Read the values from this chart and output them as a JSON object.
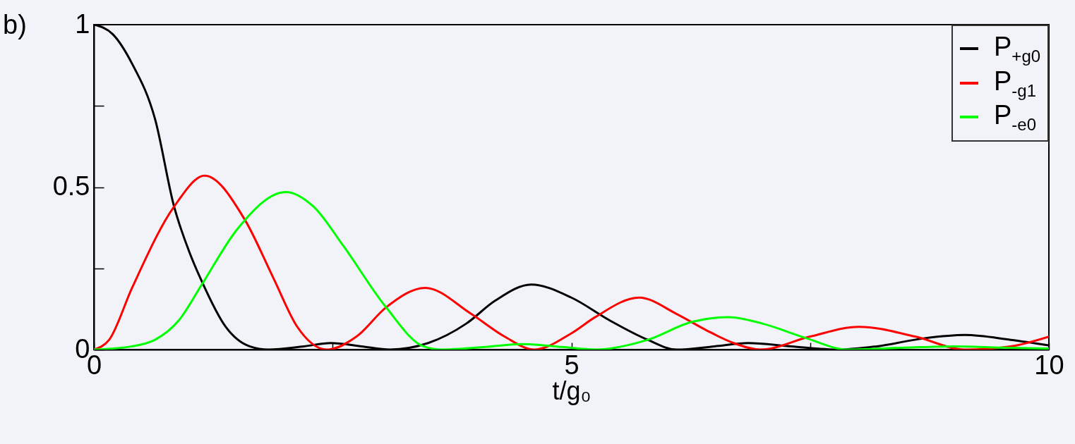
{
  "chart_data": {
    "type": "line",
    "title": "b)",
    "xlabel": "t/g₀",
    "xlim": [
      0,
      10
    ],
    "ylim": [
      0,
      1
    ],
    "xticks": [
      0,
      {
        "value": 2.5,
        "label": null
      },
      5,
      {
        "value": 7.5,
        "label": null
      },
      10
    ],
    "yticks": [
      0,
      {
        "value": 0.25,
        "label": null
      },
      0.5,
      {
        "value": 0.75,
        "label": null
      },
      1
    ],
    "grid": false,
    "legend": "top right",
    "marker": "none",
    "line_style": "solid",
    "series": [
      {
        "name": "P$_{+g0}$",
        "color": "#000000",
        "x": [
          0,
          0.2,
          0.4,
          0.64,
          0.84,
          1.0,
          1.13,
          1.38,
          1.63,
          1.83,
          2.2,
          2.48,
          2.8,
          3.1,
          3.5,
          3.9,
          4.2,
          4.58,
          5.0,
          5.4,
          5.8,
          6.1,
          6.5,
          6.85,
          7.3,
          7.8,
          8.2,
          8.7,
          9.12,
          9.6,
          10
        ],
        "values": [
          1,
          0.97,
          0.88,
          0.71,
          0.44,
          0.3,
          0.21,
          0.07,
          0.01,
          0,
          0.01,
          0.02,
          0.01,
          0,
          0.02,
          0.08,
          0.15,
          0.2,
          0.16,
          0.09,
          0.03,
          0,
          0.01,
          0.02,
          0.01,
          0,
          0.01,
          0.035,
          0.045,
          0.03,
          0.013
        ]
      },
      {
        "name": "P$_{-g1}$",
        "color": "#ff0000",
        "x": [
          0,
          0.16,
          0.4,
          0.84,
          1.16,
          1.58,
          1.88,
          2.13,
          2.44,
          2.75,
          3.06,
          3.47,
          3.95,
          4.3,
          4.61,
          5.0,
          5.25,
          5.71,
          6.1,
          6.41,
          6.7,
          6.98,
          7.5,
          8.01,
          8.6,
          9.12,
          9.6,
          10
        ],
        "values": [
          0,
          0.03,
          0.19,
          0.44,
          0.535,
          0.4,
          0.22,
          0.07,
          0,
          0.04,
          0.13,
          0.19,
          0.11,
          0.04,
          0,
          0.05,
          0.1,
          0.16,
          0.11,
          0.06,
          0.02,
          0,
          0.04,
          0.07,
          0.04,
          0,
          0.01,
          0.04
        ]
      },
      {
        "name": "P$_{-e0}$",
        "color": "#00ff00",
        "x": [
          0,
          0.4,
          0.64,
          0.89,
          1.13,
          1.5,
          2.01,
          2.3,
          2.61,
          3.06,
          3.45,
          3.65,
          4.1,
          4.49,
          4.9,
          5.25,
          5.8,
          6.26,
          6.65,
          7.0,
          7.46,
          7.89,
          8.5,
          9.0,
          9.5,
          10
        ],
        "values": [
          0,
          0.01,
          0.03,
          0.09,
          0.2,
          0.37,
          0.485,
          0.44,
          0.32,
          0.13,
          0.01,
          0,
          0.008,
          0.017,
          0.008,
          0,
          0.03,
          0.085,
          0.1,
          0.08,
          0.035,
          0,
          0.006,
          0.01,
          0.006,
          0.003
        ]
      }
    ]
  }
}
